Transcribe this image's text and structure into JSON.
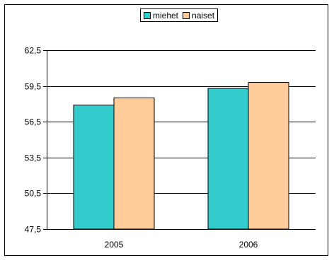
{
  "chart_data": {
    "type": "bar",
    "categories": [
      "2005",
      "2006"
    ],
    "series": [
      {
        "name": "miehet",
        "values": [
          57.9,
          59.3
        ],
        "color": "#33CCCC"
      },
      {
        "name": "naiset",
        "values": [
          58.5,
          59.8
        ],
        "color": "#FFCC99"
      }
    ],
    "ylim": [
      47.5,
      62.5
    ],
    "yticks": [
      "62,5",
      "59,5",
      "56,5",
      "53,5",
      "50,5",
      "47,5"
    ],
    "ytick_values": [
      62.5,
      59.5,
      56.5,
      53.5,
      50.5,
      47.5
    ],
    "grid": true,
    "legend_position": "top",
    "title": "",
    "xlabel": "",
    "ylabel": ""
  }
}
